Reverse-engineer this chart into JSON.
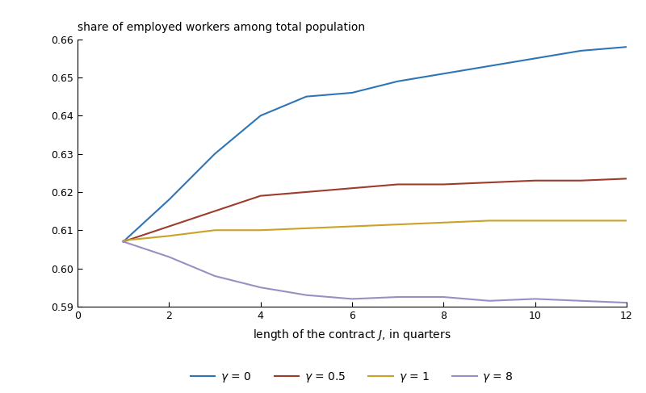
{
  "title": "share of employed workers among total population",
  "xlabel": "length of the contract $J$, in quarters",
  "xlim": [
    0,
    12
  ],
  "ylim": [
    0.59,
    0.66
  ],
  "xticks": [
    0,
    2,
    4,
    6,
    8,
    10,
    12
  ],
  "yticks": [
    0.59,
    0.6,
    0.61,
    0.62,
    0.63,
    0.64,
    0.65,
    0.66
  ],
  "x": [
    1,
    2,
    3,
    4,
    5,
    6,
    7,
    8,
    9,
    10,
    11,
    12
  ],
  "gamma_0": [
    0.607,
    0.618,
    0.63,
    0.64,
    0.645,
    0.646,
    0.649,
    0.651,
    0.653,
    0.655,
    0.657,
    0.658
  ],
  "gamma_05": [
    0.607,
    0.611,
    0.615,
    0.619,
    0.62,
    0.621,
    0.622,
    0.622,
    0.6225,
    0.623,
    0.623,
    0.6235
  ],
  "gamma_1": [
    0.6073,
    0.6085,
    0.61,
    0.61,
    0.6105,
    0.611,
    0.6115,
    0.612,
    0.6125,
    0.6125,
    0.6125,
    0.6125
  ],
  "gamma_8": [
    0.607,
    0.603,
    0.598,
    0.595,
    0.593,
    0.592,
    0.5925,
    0.5925,
    0.5915,
    0.592,
    0.5915,
    0.591
  ],
  "color_0": "#2E75B6",
  "color_05": "#9E3B2A",
  "color_1": "#C9A227",
  "color_8": "#9B8EC4",
  "legend_labels": [
    "$\\gamma$ = 0",
    "$\\gamma$ = 0.5",
    "$\\gamma$ = 1",
    "$\\gamma$ = 8"
  ],
  "linewidth": 1.5,
  "background_color": "#ffffff",
  "title_fontsize": 10,
  "tick_fontsize": 9,
  "label_fontsize": 10,
  "legend_fontsize": 10
}
